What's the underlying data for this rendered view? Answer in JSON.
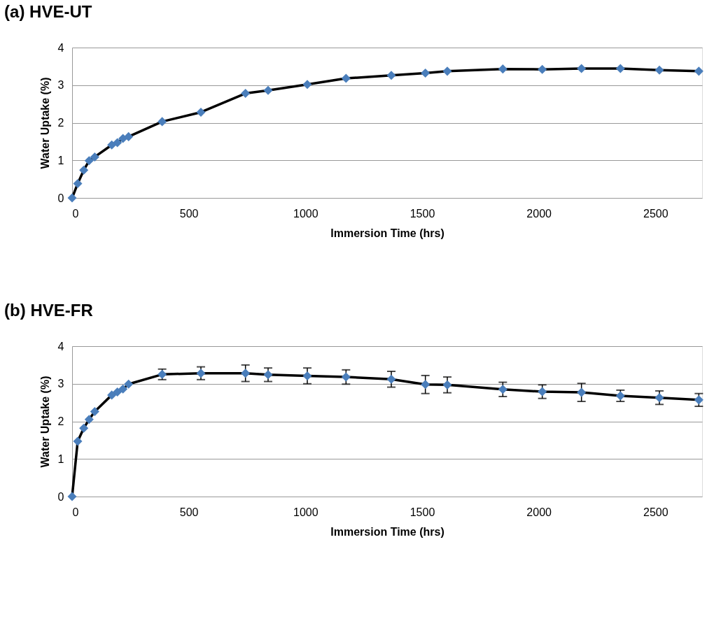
{
  "chart_data": [
    {
      "type": "line",
      "title": "(a) HVE-UT",
      "xlabel": "Immersion Time (hrs)",
      "ylabel": "Water Uptake (%)",
      "x": [
        0,
        24,
        50,
        73,
        97,
        170,
        194,
        218,
        242,
        386,
        552,
        743,
        840,
        1008,
        1174,
        1368,
        1514,
        1608,
        1846,
        2015,
        2183,
        2350,
        2517,
        2686
      ],
      "xlim": [
        0,
        2700
      ],
      "xticks": [
        0,
        500,
        1000,
        1500,
        2000,
        2500
      ],
      "ylim": [
        0,
        4
      ],
      "yticks": [
        0,
        1,
        2,
        3,
        4
      ],
      "grid": "y",
      "marker": "diamond",
      "line_style": "solid",
      "series": [
        {
          "color": "#4a7ebb",
          "values": [
            0,
            0.38,
            0.74,
            0.99,
            1.09,
            1.41,
            1.47,
            1.58,
            1.63,
            2.03,
            2.28,
            2.78,
            2.86,
            3.02,
            3.18,
            3.26,
            3.32,
            3.37,
            3.43,
            3.42,
            3.44,
            3.44,
            3.4,
            3.37
          ]
        }
      ]
    },
    {
      "type": "line",
      "title": "(b) HVE-FR",
      "xlabel": "Immersion Time (hrs)",
      "ylabel": "Water Uptake (%)",
      "x": [
        0,
        24,
        50,
        73,
        97,
        170,
        194,
        218,
        242,
        386,
        552,
        743,
        840,
        1008,
        1174,
        1368,
        1514,
        1608,
        1846,
        2015,
        2183,
        2350,
        2517,
        2686
      ],
      "xlim": [
        0,
        2700
      ],
      "xticks": [
        0,
        500,
        1000,
        1500,
        2000,
        2500
      ],
      "ylim": [
        0,
        4
      ],
      "yticks": [
        0,
        1,
        2,
        3,
        4
      ],
      "grid": "y",
      "marker": "diamond",
      "line_style": "solid",
      "series": [
        {
          "color": "#4a7ebb",
          "values": [
            0,
            1.47,
            1.82,
            2.05,
            2.26,
            2.7,
            2.78,
            2.86,
            2.99,
            3.25,
            3.28,
            3.28,
            3.24,
            3.21,
            3.18,
            3.12,
            2.98,
            2.97,
            2.85,
            2.79,
            2.77,
            2.68,
            2.63,
            2.57
          ],
          "errors": [
            null,
            null,
            null,
            null,
            null,
            null,
            null,
            null,
            null,
            0.14,
            0.17,
            0.22,
            0.18,
            0.21,
            0.19,
            0.21,
            0.24,
            0.21,
            0.19,
            0.18,
            0.24,
            0.15,
            0.18,
            0.17
          ]
        }
      ]
    }
  ]
}
